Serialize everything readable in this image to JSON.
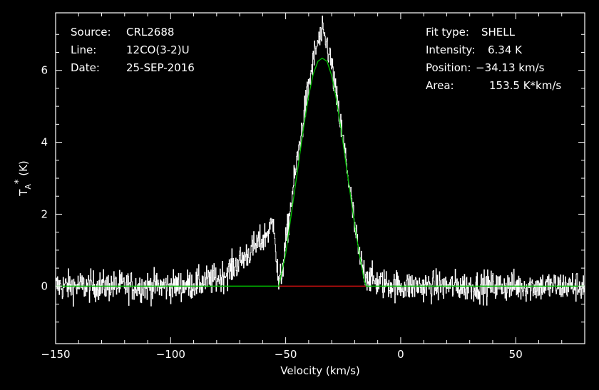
{
  "header": {
    "source_label": "Source:",
    "source_value": "CRL2688",
    "line_label": "Line:",
    "line_value": "12CO(3-2)U",
    "date_label": "Date:",
    "date_value": "25-SEP-2016"
  },
  "fit": {
    "type_label": "Fit type:",
    "type_value": "SHELL",
    "intensity_label": "Intensity:",
    "intensity_value": "6.34 K",
    "position_label": "Position:",
    "position_value": "−34.13 km/s",
    "area_label": "Area:",
    "area_value": "153.5 K*km/s"
  },
  "colors": {
    "background": "#000000",
    "spectrum": "#ffffff",
    "fit": "#00c000",
    "fit_window": "#d01010",
    "axes": "#ffffff"
  },
  "chart_data": {
    "type": "line",
    "xlabel": "Velocity (km/s)",
    "ylabel": "T_A^* (K)",
    "xlim": [
      -150,
      80
    ],
    "ylim": [
      -1.6,
      7.6
    ],
    "x_ticks": [
      -150,
      -100,
      -50,
      0,
      50
    ],
    "x_tick_labels": [
      "−150",
      "−100",
      "−50",
      "0",
      "50"
    ],
    "y_ticks": [
      0,
      2,
      4,
      6
    ],
    "y_tick_labels": [
      "0",
      "2",
      "4",
      "6"
    ],
    "grid": false,
    "series": [
      {
        "kind": "spectrum",
        "x": [
          -150,
          -140,
          -130,
          -120,
          -110,
          -100,
          -90,
          -80,
          -75,
          -70,
          -65,
          -60,
          -57,
          -55,
          -54,
          -53,
          -52,
          -50,
          -48,
          -46,
          -44,
          -42,
          -40,
          -38,
          -36,
          -34,
          -32,
          -30,
          -28,
          -26,
          -24,
          -22,
          -20,
          -18,
          -16,
          -14,
          -12,
          -10,
          -5,
          0,
          10,
          20,
          30,
          40,
          50,
          60,
          70,
          80
        ],
        "y": [
          0.0,
          0.0,
          0.0,
          0.0,
          0.0,
          0.0,
          0.05,
          0.2,
          0.4,
          0.7,
          1.0,
          1.3,
          1.6,
          1.8,
          0.6,
          0.0,
          0.3,
          1.2,
          2.2,
          3.1,
          4.0,
          4.8,
          5.6,
          6.3,
          6.8,
          7.0,
          6.7,
          6.1,
          5.2,
          4.4,
          3.6,
          2.6,
          1.6,
          0.8,
          0.4,
          0.25,
          0.15,
          0.1,
          0.05,
          0.0,
          0.0,
          0.0,
          0.0,
          0.0,
          0.0,
          0.0,
          0.0,
          0.0
        ]
      },
      {
        "kind": "fit",
        "x": [
          -150,
          -53,
          -50,
          -48,
          -46,
          -44,
          -42,
          -40,
          -38,
          -36,
          -34.13,
          -32,
          -30,
          -28,
          -26,
          -24,
          -22,
          -20,
          -18,
          -16,
          -15,
          80
        ],
        "y": [
          0,
          0,
          0.9,
          1.8,
          2.7,
          3.6,
          4.5,
          5.3,
          5.9,
          6.25,
          6.34,
          6.25,
          5.85,
          5.2,
          4.4,
          3.5,
          2.6,
          1.7,
          0.9,
          0.2,
          0,
          0
        ]
      }
    ],
    "fit_window": [
      -53,
      -15
    ],
    "noise_rms": 0.3
  }
}
